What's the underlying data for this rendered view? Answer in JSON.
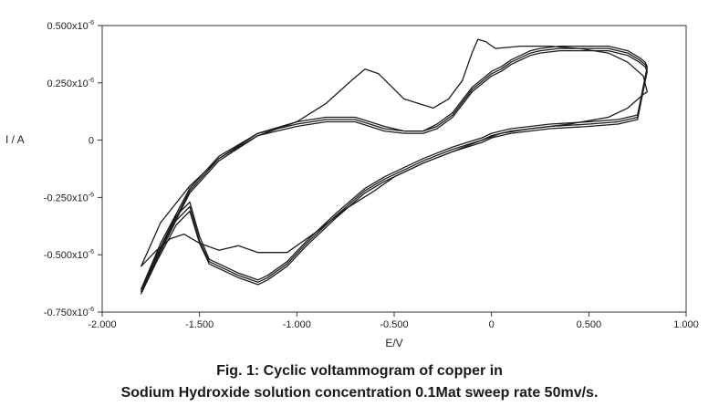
{
  "chart_data": {
    "type": "line",
    "title": "",
    "xlabel": "E/V",
    "ylabel": "I / A",
    "xlim": [
      -2.0,
      1.0
    ],
    "ylim": [
      -0.75,
      0.5
    ],
    "y_unit": "x10^-6 A",
    "grid": false,
    "legend": "none",
    "x_ticks": [
      {
        "value": -2.0,
        "label": "-2.000"
      },
      {
        "value": -1.5,
        "label": "-1.500"
      },
      {
        "value": -1.0,
        "label": "-1.000"
      },
      {
        "value": -0.5,
        "label": "-0.500"
      },
      {
        "value": 0.0,
        "label": "0"
      },
      {
        "value": 0.5,
        "label": "0.500"
      },
      {
        "value": 1.0,
        "label": "1.000"
      }
    ],
    "y_ticks": [
      {
        "value": 0.5,
        "label": "0.500x10",
        "exp": "-6"
      },
      {
        "value": 0.25,
        "label": "0.250x10",
        "exp": "-6"
      },
      {
        "value": 0.0,
        "label": "0",
        "exp": ""
      },
      {
        "value": -0.25,
        "label": "-0.250x10",
        "exp": "-6"
      },
      {
        "value": -0.5,
        "label": "-0.500x10",
        "exp": "-6"
      },
      {
        "value": -0.75,
        "label": "-0.750x10",
        "exp": "-6"
      }
    ],
    "series": [
      {
        "x": [
          -1.8,
          -1.7,
          -1.55,
          -1.4,
          -1.2,
          -1.0,
          -0.85,
          -0.72,
          -0.65,
          -0.58,
          -0.45,
          -0.3,
          -0.22,
          -0.15,
          -0.1,
          -0.07,
          -0.03,
          0.02,
          0.15,
          0.3,
          0.45,
          0.6,
          0.7,
          0.78,
          0.8,
          0.78,
          0.7,
          0.6,
          0.4,
          0.2,
          0.05,
          -0.05,
          -0.2,
          -0.35,
          -0.5,
          -0.6,
          -0.75,
          -0.9,
          -1.05,
          -1.2,
          -1.3,
          -1.4,
          -1.5,
          -1.58,
          -1.65,
          -1.72,
          -1.8
        ],
        "y": [
          -0.55,
          -0.36,
          -0.2,
          -0.08,
          0.02,
          0.08,
          0.16,
          0.26,
          0.31,
          0.29,
          0.18,
          0.14,
          0.18,
          0.26,
          0.38,
          0.44,
          0.43,
          0.4,
          0.41,
          0.41,
          0.4,
          0.38,
          0.34,
          0.28,
          0.21,
          0.2,
          0.14,
          0.1,
          0.07,
          0.05,
          0.03,
          0.0,
          -0.05,
          -0.1,
          -0.16,
          -0.22,
          -0.3,
          -0.4,
          -0.49,
          -0.49,
          -0.46,
          -0.48,
          -0.45,
          -0.41,
          -0.43,
          -0.48,
          -0.55
        ]
      },
      {
        "x": [
          -1.8,
          -1.7,
          -1.55,
          -1.4,
          -1.2,
          -1.0,
          -0.85,
          -0.7,
          -0.55,
          -0.45,
          -0.35,
          -0.28,
          -0.2,
          -0.1,
          0.0,
          0.05,
          0.1,
          0.15,
          0.2,
          0.25,
          0.35,
          0.5,
          0.6,
          0.7,
          0.76,
          0.79,
          0.8,
          0.75,
          0.65,
          0.5,
          0.3,
          0.1,
          0.0,
          -0.05,
          -0.2,
          -0.35,
          -0.45,
          -0.55,
          -0.65,
          -0.8,
          -0.95,
          -1.05,
          -1.15,
          -1.2,
          -1.3,
          -1.4,
          -1.45,
          -1.5,
          -1.55,
          -1.62,
          -1.72,
          -1.8
        ],
        "y": [
          -0.66,
          -0.47,
          -0.22,
          -0.08,
          0.03,
          0.07,
          0.09,
          0.09,
          0.05,
          0.04,
          0.04,
          0.06,
          0.11,
          0.22,
          0.29,
          0.31,
          0.34,
          0.36,
          0.38,
          0.39,
          0.4,
          0.4,
          0.4,
          0.38,
          0.35,
          0.33,
          0.31,
          0.1,
          0.08,
          0.07,
          0.06,
          0.04,
          0.02,
          0.0,
          -0.04,
          -0.09,
          -0.13,
          -0.17,
          -0.22,
          -0.33,
          -0.45,
          -0.54,
          -0.6,
          -0.62,
          -0.59,
          -0.55,
          -0.53,
          -0.44,
          -0.29,
          -0.35,
          -0.52,
          -0.66
        ]
      },
      {
        "x": [
          -1.8,
          -1.7,
          -1.55,
          -1.4,
          -1.2,
          -1.0,
          -0.85,
          -0.7,
          -0.55,
          -0.45,
          -0.35,
          -0.28,
          -0.2,
          -0.1,
          0.0,
          0.05,
          0.1,
          0.15,
          0.2,
          0.25,
          0.35,
          0.5,
          0.6,
          0.7,
          0.76,
          0.79,
          0.8,
          0.75,
          0.65,
          0.5,
          0.3,
          0.1,
          0.0,
          -0.05,
          -0.2,
          -0.35,
          -0.45,
          -0.55,
          -0.65,
          -0.8,
          -0.95,
          -1.05,
          -1.15,
          -1.2,
          -1.3,
          -1.4,
          -1.45,
          -1.5,
          -1.55,
          -1.62,
          -1.72,
          -1.8
        ],
        "y": [
          -0.65,
          -0.45,
          -0.21,
          -0.07,
          0.03,
          0.08,
          0.1,
          0.1,
          0.06,
          0.04,
          0.04,
          0.07,
          0.12,
          0.23,
          0.3,
          0.32,
          0.35,
          0.37,
          0.39,
          0.4,
          0.41,
          0.41,
          0.41,
          0.39,
          0.36,
          0.34,
          0.32,
          0.11,
          0.09,
          0.08,
          0.07,
          0.05,
          0.03,
          0.01,
          -0.03,
          -0.08,
          -0.12,
          -0.16,
          -0.21,
          -0.32,
          -0.44,
          -0.53,
          -0.59,
          -0.61,
          -0.58,
          -0.54,
          -0.52,
          -0.42,
          -0.27,
          -0.33,
          -0.5,
          -0.65
        ]
      },
      {
        "x": [
          -1.8,
          -1.7,
          -1.55,
          -1.4,
          -1.2,
          -1.0,
          -0.85,
          -0.7,
          -0.55,
          -0.45,
          -0.35,
          -0.28,
          -0.2,
          -0.1,
          0.0,
          0.05,
          0.1,
          0.15,
          0.2,
          0.25,
          0.35,
          0.5,
          0.6,
          0.7,
          0.76,
          0.79,
          0.8,
          0.75,
          0.65,
          0.5,
          0.3,
          0.1,
          0.0,
          -0.05,
          -0.2,
          -0.35,
          -0.45,
          -0.55,
          -0.65,
          -0.8,
          -0.95,
          -1.05,
          -1.15,
          -1.2,
          -1.3,
          -1.4,
          -1.45,
          -1.5,
          -1.55,
          -1.62,
          -1.72,
          -1.8
        ],
        "y": [
          -0.67,
          -0.48,
          -0.23,
          -0.09,
          0.02,
          0.06,
          0.08,
          0.08,
          0.04,
          0.03,
          0.03,
          0.05,
          0.1,
          0.21,
          0.28,
          0.3,
          0.33,
          0.35,
          0.37,
          0.38,
          0.39,
          0.39,
          0.39,
          0.37,
          0.34,
          0.32,
          0.3,
          0.09,
          0.07,
          0.06,
          0.05,
          0.03,
          0.01,
          -0.01,
          -0.05,
          -0.1,
          -0.14,
          -0.18,
          -0.23,
          -0.34,
          -0.46,
          -0.55,
          -0.61,
          -0.63,
          -0.6,
          -0.56,
          -0.54,
          -0.45,
          -0.31,
          -0.37,
          -0.53,
          -0.67
        ]
      }
    ]
  },
  "caption": {
    "line1": "Fig. 1: Cyclic voltammogram of copper in",
    "line2": "Sodium Hydroxide solution concentration 0.1Mat sweep rate 50mv/s."
  }
}
